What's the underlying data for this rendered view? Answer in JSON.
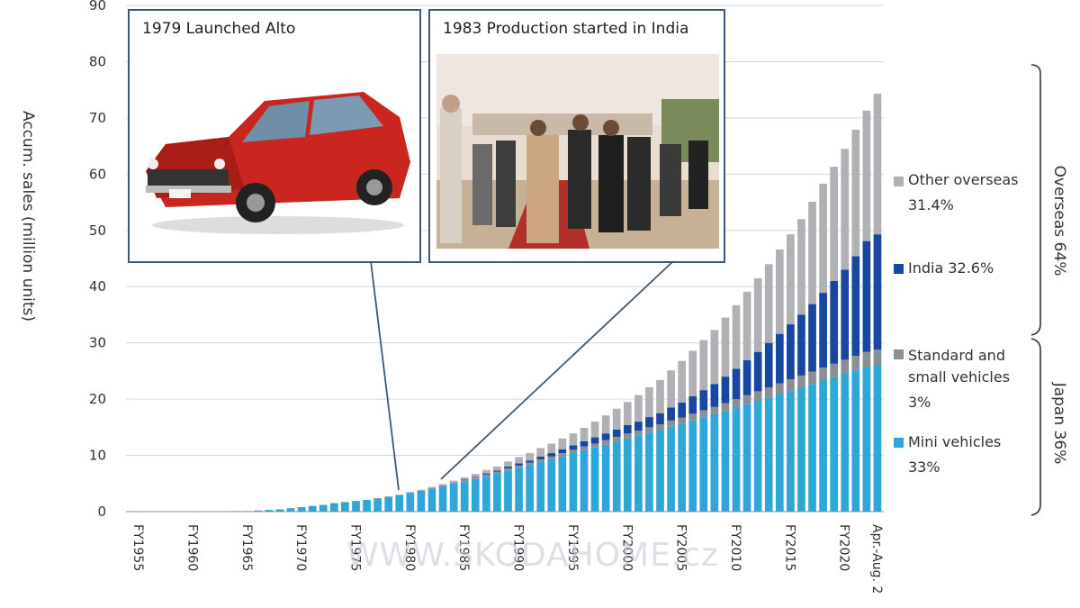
{
  "chart_data": {
    "type": "bar",
    "stacked": true,
    "ylabel": "Accum. sales (million units)",
    "ylim": [
      0,
      90
    ],
    "yticks": [
      0,
      10,
      20,
      30,
      40,
      50,
      60,
      70,
      80,
      90
    ],
    "grid": true,
    "legend_position": "right",
    "x_tick_labels": [
      "FY1955",
      "FY1960",
      "FY1965",
      "FY1970",
      "FY1975",
      "FY1980",
      "FY1985",
      "FY1990",
      "FY1995",
      "FY2000",
      "FY2005",
      "FY2010",
      "FY2015",
      "FY2020",
      "Apr.-Aug. 2"
    ],
    "categories": [
      "FY1955",
      "FY1956",
      "FY1957",
      "FY1958",
      "FY1959",
      "FY1960",
      "FY1961",
      "FY1962",
      "FY1963",
      "FY1964",
      "FY1965",
      "FY1966",
      "FY1967",
      "FY1968",
      "FY1969",
      "FY1970",
      "FY1971",
      "FY1972",
      "FY1973",
      "FY1974",
      "FY1975",
      "FY1976",
      "FY1977",
      "FY1978",
      "FY1979",
      "FY1980",
      "FY1981",
      "FY1982",
      "FY1983",
      "FY1984",
      "FY1985",
      "FY1986",
      "FY1987",
      "FY1988",
      "FY1989",
      "FY1990",
      "FY1991",
      "FY1992",
      "FY1993",
      "FY1994",
      "FY1995",
      "FY1996",
      "FY1997",
      "FY1998",
      "FY1999",
      "FY2000",
      "FY2001",
      "FY2002",
      "FY2003",
      "FY2004",
      "FY2005",
      "FY2006",
      "FY2007",
      "FY2008",
      "FY2009",
      "FY2010",
      "FY2011",
      "FY2012",
      "FY2013",
      "FY2014",
      "FY2015",
      "FY2016",
      "FY2017",
      "FY2018",
      "FY2019",
      "FY2020",
      "FY2021",
      "FY2022",
      "Apr.-Aug. 2"
    ],
    "series": [
      {
        "name": "Mini vehicles",
        "percent": "33%",
        "color": "#2ea6d8",
        "values": [
          0,
          0,
          0,
          0,
          0,
          0,
          0,
          0,
          0,
          0.1,
          0.1,
          0.2,
          0.3,
          0.4,
          0.6,
          0.8,
          1.0,
          1.2,
          1.5,
          1.7,
          1.9,
          2.1,
          2.3,
          2.6,
          2.9,
          3.3,
          3.7,
          4.1,
          4.5,
          5.0,
          5.4,
          5.8,
          6.3,
          6.8,
          7.3,
          7.8,
          8.3,
          8.8,
          9.3,
          9.8,
          10.4,
          10.9,
          11.4,
          11.9,
          12.5,
          13.0,
          13.5,
          14.0,
          14.5,
          15.1,
          15.6,
          16.2,
          16.7,
          17.3,
          17.9,
          18.5,
          19.1,
          19.7,
          20.3,
          20.9,
          21.5,
          22.1,
          22.7,
          23.3,
          23.9,
          24.5,
          25.1,
          25.7,
          26.1
        ]
      },
      {
        "name": "Standard and small vehicles",
        "percent": "3%",
        "color": "#8a8f96",
        "values": [
          0,
          0,
          0,
          0,
          0,
          0,
          0,
          0,
          0,
          0,
          0,
          0,
          0,
          0,
          0,
          0,
          0,
          0,
          0,
          0,
          0,
          0,
          0.1,
          0.1,
          0.1,
          0.1,
          0.1,
          0.1,
          0.2,
          0.2,
          0.2,
          0.3,
          0.3,
          0.3,
          0.4,
          0.4,
          0.4,
          0.5,
          0.5,
          0.6,
          0.6,
          0.7,
          0.7,
          0.8,
          0.8,
          0.9,
          0.9,
          1.0,
          1.0,
          1.1,
          1.1,
          1.2,
          1.3,
          1.3,
          1.4,
          1.5,
          1.6,
          1.7,
          1.8,
          1.9,
          2.0,
          2.1,
          2.2,
          2.3,
          2.4,
          2.5,
          2.6,
          2.7,
          2.7
        ]
      },
      {
        "name": "India",
        "percent": "32.6%",
        "color": "#17479e",
        "values": [
          0,
          0,
          0,
          0,
          0,
          0,
          0,
          0,
          0,
          0,
          0,
          0,
          0,
          0,
          0,
          0,
          0,
          0,
          0,
          0,
          0,
          0,
          0,
          0,
          0,
          0,
          0,
          0,
          0,
          0,
          0.1,
          0.1,
          0.2,
          0.2,
          0.3,
          0.4,
          0.4,
          0.5,
          0.6,
          0.7,
          0.8,
          0.9,
          1.1,
          1.2,
          1.3,
          1.5,
          1.6,
          1.8,
          2.0,
          2.3,
          2.7,
          3.1,
          3.6,
          4.1,
          4.7,
          5.4,
          6.2,
          7.0,
          7.9,
          8.8,
          9.8,
          10.8,
          12.0,
          13.3,
          14.7,
          16.0,
          17.7,
          19.7,
          20.5
        ]
      },
      {
        "name": "Other overseas",
        "percent": "31.4%",
        "color": "#b0b1b4",
        "values": [
          0,
          0,
          0,
          0,
          0,
          0,
          0,
          0,
          0,
          0,
          0,
          0,
          0,
          0,
          0,
          0,
          0,
          0,
          0,
          0,
          0,
          0,
          0,
          0,
          0,
          0.1,
          0.1,
          0.2,
          0.2,
          0.3,
          0.4,
          0.5,
          0.6,
          0.7,
          0.9,
          1.1,
          1.3,
          1.5,
          1.7,
          1.9,
          2.1,
          2.4,
          2.8,
          3.2,
          3.7,
          4.1,
          4.7,
          5.3,
          5.9,
          6.6,
          7.4,
          8.1,
          8.9,
          9.6,
          10.5,
          11.3,
          12.2,
          13.1,
          14.0,
          15.0,
          16.0,
          17.0,
          18.2,
          19.4,
          20.3,
          21.5,
          22.5,
          23.2,
          25.0
        ]
      }
    ],
    "brackets": [
      {
        "label": "Overseas 64%"
      },
      {
        "label": "Japan 36%"
      }
    ],
    "annotations": [
      {
        "text": "1979 Launched Alto",
        "category": "FY1979"
      },
      {
        "text": "1983 Production started in India",
        "category": "FY1983"
      }
    ]
  },
  "watermark": "WWW.SKODAHOME.cz"
}
